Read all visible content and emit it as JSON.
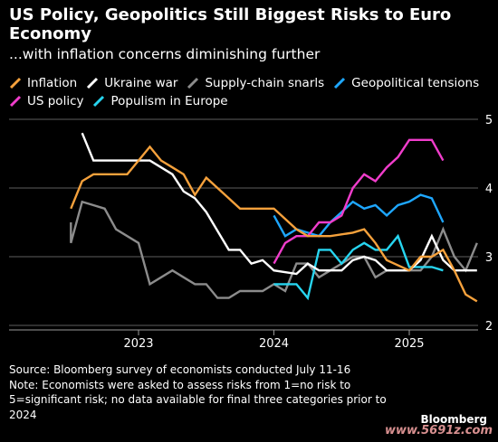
{
  "header": {
    "title": "US Policy, Geopolitics Still Biggest Risks to Euro Economy",
    "subtitle": "...with inflation concerns diminishing further"
  },
  "footer": {
    "source": "Source: Bloomberg survey of economists conducted July 11-16",
    "note": "Note: Economists were asked to assess risks from 1=no risk to 5=significant risk; no data available for final three categories prior to 2024",
    "brand": "Bloomberg",
    "watermark": "www.5691z.com"
  },
  "chart_data": {
    "type": "line",
    "x_axis": {
      "ticks": [
        "2023",
        "2024",
        "2025"
      ],
      "range": [
        "Jul 2022",
        "Jul 2025"
      ]
    },
    "y_axis": {
      "ticks": [
        "2",
        "3",
        "4",
        "5"
      ],
      "range": [
        2,
        5
      ],
      "side": "right"
    },
    "grid": "horizontal",
    "legend_position": "top",
    "series": [
      {
        "name": "Inflation",
        "color": "#f5a13c",
        "points": [
          [
            "Jul 2022",
            3.7
          ],
          [
            "Aug 2022",
            4.1
          ],
          [
            "Sep 2022",
            4.2
          ],
          [
            "Nov 2022",
            4.2
          ],
          [
            "Dec 2022",
            4.2
          ],
          [
            "Jan 2023",
            4.4
          ],
          [
            "Feb 2023",
            4.6
          ],
          [
            "Mar 2023",
            4.4
          ],
          [
            "Apr 2023",
            4.3
          ],
          [
            "May 2023",
            4.2
          ],
          [
            "Jun 2023",
            3.9
          ],
          [
            "Jul 2023",
            4.15
          ],
          [
            "Sep 2023",
            3.85
          ],
          [
            "Oct 2023",
            3.7
          ],
          [
            "Nov 2023",
            3.7
          ],
          [
            "Jan 2024",
            3.7
          ],
          [
            "Feb 2024",
            3.55
          ],
          [
            "Mar 2024",
            3.4
          ],
          [
            "Apr 2024",
            3.3
          ],
          [
            "Jun 2024",
            3.3
          ],
          [
            "Aug 2024",
            3.35
          ],
          [
            "Sep 2024",
            3.4
          ],
          [
            "Oct 2024",
            3.2
          ],
          [
            "Nov 2024",
            2.95
          ],
          [
            "Jan 2025",
            2.8
          ],
          [
            "Feb 2025",
            3.0
          ],
          [
            "Mar 2025",
            3.0
          ],
          [
            "Apr 2025",
            3.1
          ],
          [
            "May 2025",
            2.8
          ],
          [
            "Jun 2025",
            2.45
          ],
          [
            "Jul 2025",
            2.35
          ]
        ]
      },
      {
        "name": "Ukraine war",
        "color": "#ffffff",
        "points": [
          [
            "Aug 2022",
            4.8
          ],
          [
            "Sep 2022",
            4.4
          ],
          [
            "Nov 2022",
            4.4
          ],
          [
            "Jan 2023",
            4.4
          ],
          [
            "Feb 2023",
            4.4
          ],
          [
            "Apr 2023",
            4.2
          ],
          [
            "May 2023",
            3.95
          ],
          [
            "Jun 2023",
            3.85
          ],
          [
            "Jul 2023",
            3.65
          ],
          [
            "Sep 2023",
            3.1
          ],
          [
            "Oct 2023",
            3.1
          ],
          [
            "Nov 2023",
            2.9
          ],
          [
            "Dec 2023",
            2.95
          ],
          [
            "Jan 2024",
            2.8
          ],
          [
            "Mar 2024",
            2.75
          ],
          [
            "Apr 2024",
            2.9
          ],
          [
            "May 2024",
            2.8
          ],
          [
            "Jun 2024",
            2.8
          ],
          [
            "Jul 2024",
            2.8
          ],
          [
            "Aug 2024",
            2.95
          ],
          [
            "Sep 2024",
            3.0
          ],
          [
            "Oct 2024",
            2.95
          ],
          [
            "Nov 2024",
            2.8
          ],
          [
            "Dec 2024",
            2.8
          ],
          [
            "Jan 2025",
            2.8
          ],
          [
            "Feb 2025",
            2.95
          ],
          [
            "Mar 2025",
            3.3
          ],
          [
            "Apr 2025",
            2.95
          ],
          [
            "May 2025",
            2.8
          ],
          [
            "Jun 2025",
            2.8
          ],
          [
            "Jul 2025",
            2.8
          ]
        ]
      },
      {
        "name": "Supply-chain snarls",
        "color": "#8c8c8c",
        "points": [
          [
            "Jul 2022",
            3.5
          ],
          [
            "Jul 2022",
            3.2
          ],
          [
            "Aug 2022",
            3.8
          ],
          [
            "Sep 2022",
            3.75
          ],
          [
            "Oct 2022",
            3.7
          ],
          [
            "Nov 2022",
            3.4
          ],
          [
            "Dec 2022",
            3.3
          ],
          [
            "Jan 2023",
            3.2
          ],
          [
            "Feb 2023",
            2.6
          ],
          [
            "Apr 2023",
            2.8
          ],
          [
            "May 2023",
            2.7
          ],
          [
            "Jun 2023",
            2.6
          ],
          [
            "Jul 2023",
            2.6
          ],
          [
            "Aug 2023",
            2.4
          ],
          [
            "Sep 2023",
            2.4
          ],
          [
            "Oct 2023",
            2.5
          ],
          [
            "Dec 2023",
            2.5
          ],
          [
            "Jan 2024",
            2.6
          ],
          [
            "Feb 2024",
            2.5
          ],
          [
            "Mar 2024",
            2.9
          ],
          [
            "Apr 2024",
            2.9
          ],
          [
            "May 2024",
            2.7
          ],
          [
            "Jun 2024",
            2.8
          ],
          [
            "Jul 2024",
            2.9
          ],
          [
            "Aug 2024",
            3.0
          ],
          [
            "Sep 2024",
            3.0
          ],
          [
            "Oct 2024",
            2.7
          ],
          [
            "Nov 2024",
            2.8
          ],
          [
            "Dec 2024",
            2.8
          ],
          [
            "Jan 2025",
            2.8
          ],
          [
            "Feb 2025",
            2.8
          ],
          [
            "Mar 2025",
            3.0
          ],
          [
            "Apr 2025",
            3.4
          ],
          [
            "May 2025",
            3.0
          ],
          [
            "Jun 2025",
            2.8
          ],
          [
            "Jul 2025",
            3.2
          ]
        ]
      },
      {
        "name": "Geopolitical tensions",
        "color": "#1ea7ff",
        "points": [
          [
            "Jan 2024",
            3.6
          ],
          [
            "Feb 2024",
            3.3
          ],
          [
            "Mar 2024",
            3.4
          ],
          [
            "Apr 2024",
            3.35
          ],
          [
            "May 2024",
            3.3
          ],
          [
            "Jun 2024",
            3.5
          ],
          [
            "Jul 2024",
            3.65
          ],
          [
            "Aug 2024",
            3.8
          ],
          [
            "Sep 2024",
            3.7
          ],
          [
            "Oct 2024",
            3.75
          ],
          [
            "Nov 2024",
            3.6
          ],
          [
            "Dec 2024",
            3.75
          ],
          [
            "Jan 2025",
            3.8
          ],
          [
            "Feb 2025",
            3.9
          ],
          [
            "Mar 2025",
            3.85
          ],
          [
            "Apr 2025",
            3.5
          ]
        ]
      },
      {
        "name": "US policy",
        "color": "#f03dcb",
        "points": [
          [
            "Jan 2024",
            2.9
          ],
          [
            "Feb 2024",
            3.2
          ],
          [
            "Mar 2024",
            3.3
          ],
          [
            "Apr 2024",
            3.3
          ],
          [
            "May 2024",
            3.5
          ],
          [
            "Jun 2024",
            3.5
          ],
          [
            "Jul 2024",
            3.6
          ],
          [
            "Aug 2024",
            4.0
          ],
          [
            "Sep 2024",
            4.2
          ],
          [
            "Oct 2024",
            4.1
          ],
          [
            "Nov 2024",
            4.3
          ],
          [
            "Dec 2024",
            4.45
          ],
          [
            "Jan 2025",
            4.7
          ],
          [
            "Feb 2025",
            4.7
          ],
          [
            "Mar 2025",
            4.7
          ],
          [
            "Apr 2025",
            4.4
          ]
        ]
      },
      {
        "name": "Populism in Europe",
        "color": "#27d5f0",
        "points": [
          [
            "Jan 2024",
            2.6
          ],
          [
            "Feb 2024",
            2.6
          ],
          [
            "Mar 2024",
            2.6
          ],
          [
            "Apr 2024",
            2.4
          ],
          [
            "May 2024",
            3.1
          ],
          [
            "Jun 2024",
            3.1
          ],
          [
            "Jul 2024",
            2.9
          ],
          [
            "Aug 2024",
            3.1
          ],
          [
            "Sep 2024",
            3.2
          ],
          [
            "Oct 2024",
            3.1
          ],
          [
            "Nov 2024",
            3.1
          ],
          [
            "Dec 2024",
            3.3
          ],
          [
            "Jan 2025",
            2.85
          ],
          [
            "Feb 2025",
            2.85
          ],
          [
            "Mar 2025",
            2.85
          ],
          [
            "Apr 2025",
            2.8
          ]
        ]
      }
    ]
  }
}
